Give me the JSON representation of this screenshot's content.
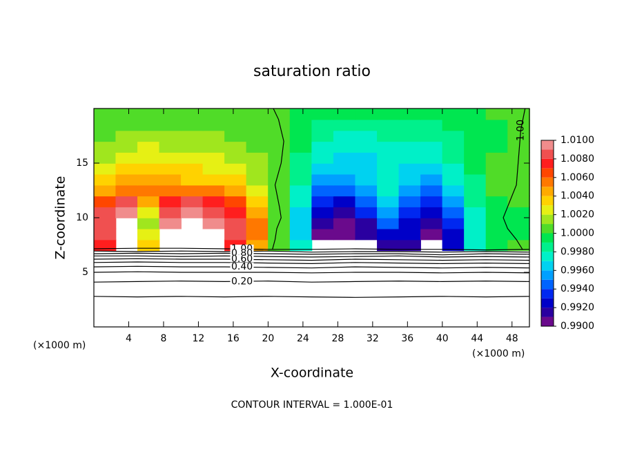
{
  "chart_data": {
    "type": "contour",
    "title": "saturation ratio",
    "x_label": "X-coordinate",
    "y_label": "Z-coordinate",
    "x_unit_label": "(×1000 m)",
    "footer": "CONTOUR INTERVAL = 1.000E-01",
    "xlim": [
      0,
      50
    ],
    "ylim": [
      0,
      20
    ],
    "xticks": [
      4,
      8,
      12,
      16,
      20,
      24,
      28,
      32,
      36,
      40,
      44,
      48
    ],
    "yticks": [
      5,
      10,
      15
    ],
    "field": {
      "xbins": [
        0,
        2.5,
        5,
        7.5,
        10,
        12.5,
        15,
        17.5,
        20,
        22.5,
        25,
        27.5,
        30,
        32.5,
        35,
        37.5,
        40,
        42.5,
        45,
        47.5,
        50
      ],
      "zbins": [
        7,
        8,
        9,
        10,
        11,
        12,
        13,
        14,
        15,
        16,
        17,
        18,
        19,
        20
      ],
      "values": [
        [
          1.007,
          null,
          1.003,
          null,
          null,
          null,
          1.007,
          1.004,
          1.0,
          0.997,
          null,
          null,
          null,
          0.991,
          0.991,
          null,
          0.992,
          0.997,
          0.999,
          1.0
        ],
        [
          1.008,
          null,
          1.002,
          null,
          null,
          null,
          1.008,
          1.005,
          1.0,
          0.996,
          0.99,
          0.99,
          0.991,
          0.992,
          0.992,
          0.99,
          0.992,
          0.997,
          0.999,
          0.999
        ],
        [
          1.008,
          null,
          1.001,
          1.009,
          null,
          1.009,
          1.008,
          1.005,
          1.0,
          0.996,
          0.991,
          0.99,
          0.991,
          0.994,
          0.992,
          0.991,
          0.993,
          0.997,
          0.999,
          0.999
        ],
        [
          1.008,
          1.009,
          1.002,
          1.008,
          1.009,
          1.008,
          1.007,
          1.004,
          1.0,
          0.996,
          0.992,
          0.991,
          0.993,
          0.995,
          0.993,
          0.992,
          0.994,
          0.997,
          0.999,
          0.999
        ],
        [
          1.006,
          1.008,
          1.004,
          1.007,
          1.008,
          1.007,
          1.006,
          1.003,
          1.0,
          0.997,
          0.993,
          0.992,
          0.994,
          0.996,
          0.994,
          0.993,
          0.995,
          0.998,
          0.999,
          1.0
        ],
        [
          1.004,
          1.005,
          1.005,
          1.005,
          1.005,
          1.005,
          1.004,
          1.002,
          1.0,
          0.997,
          0.994,
          0.994,
          0.995,
          0.997,
          0.995,
          0.994,
          0.996,
          0.998,
          1.0,
          1.0
        ],
        [
          1.003,
          1.004,
          1.004,
          1.004,
          1.003,
          1.003,
          1.003,
          1.001,
          1.0,
          0.998,
          0.995,
          0.995,
          0.996,
          0.997,
          0.996,
          0.995,
          0.997,
          0.998,
          1.0,
          1.0
        ],
        [
          1.002,
          1.003,
          1.003,
          1.003,
          1.003,
          1.002,
          1.002,
          1.001,
          1.0,
          0.998,
          0.996,
          0.996,
          0.996,
          0.997,
          0.996,
          0.996,
          0.997,
          0.999,
          1.0,
          1.0
        ],
        [
          1.001,
          1.002,
          1.002,
          1.002,
          1.002,
          1.002,
          1.001,
          1.001,
          1.0,
          0.998,
          0.997,
          0.996,
          0.996,
          0.997,
          0.997,
          0.997,
          0.998,
          0.999,
          1.0,
          1.0
        ],
        [
          1.001,
          1.001,
          1.002,
          1.001,
          1.001,
          1.001,
          1.001,
          1.0,
          1.0,
          0.999,
          0.997,
          0.997,
          0.997,
          0.997,
          0.997,
          0.997,
          0.998,
          0.999,
          0.999,
          1.0
        ],
        [
          1.0,
          1.001,
          1.001,
          1.001,
          1.001,
          1.001,
          1.0,
          1.0,
          1.0,
          0.999,
          0.998,
          0.997,
          0.997,
          0.998,
          0.998,
          0.998,
          0.998,
          0.999,
          0.999,
          1.0
        ],
        [
          1.0,
          1.0,
          1.0,
          1.0,
          1.0,
          1.0,
          1.0,
          1.0,
          1.0,
          0.999,
          0.998,
          0.998,
          0.998,
          0.998,
          0.998,
          0.998,
          0.999,
          0.999,
          0.999,
          1.0
        ],
        [
          1.0,
          1.0,
          1.0,
          1.0,
          1.0,
          1.0,
          1.0,
          1.0,
          1.0,
          0.999,
          0.999,
          0.999,
          0.999,
          0.999,
          0.999,
          0.999,
          0.999,
          0.999,
          1.0,
          1.0
        ]
      ]
    },
    "colorbar": {
      "clim": [
        0.99,
        1.01
      ],
      "colors": [
        "#6a0a8c",
        "#2a00a0",
        "#0000c8",
        "#0028f0",
        "#0064ff",
        "#00a0ff",
        "#00d2f0",
        "#00f0c8",
        "#00f08c",
        "#00e650",
        "#50dc28",
        "#a0e61e",
        "#e6f014",
        "#ffd200",
        "#ffaa00",
        "#ff7800",
        "#ff4600",
        "#ff1e1e",
        "#f05050",
        "#f08c8c"
      ],
      "ticks": [
        {
          "value": 0.99,
          "label": "0.9900"
        },
        {
          "value": 0.992,
          "label": "0.9920"
        },
        {
          "value": 0.994,
          "label": "0.9940"
        },
        {
          "value": 0.996,
          "label": "0.9960"
        },
        {
          "value": 0.998,
          "label": "0.9980"
        },
        {
          "value": 1.0,
          "label": "1.0000"
        },
        {
          "value": 1.002,
          "label": "1.0020"
        },
        {
          "value": 1.004,
          "label": "1.0040"
        },
        {
          "value": 1.006,
          "label": "1.0060"
        },
        {
          "value": 1.008,
          "label": "1.0080"
        },
        {
          "value": 1.01,
          "label": "1.0100"
        }
      ]
    },
    "contours": [
      {
        "level": 1.0,
        "label": "1.00",
        "x": [
          0,
          5,
          10,
          15,
          20,
          25,
          30,
          35,
          40,
          45,
          50
        ],
        "z": [
          7.15,
          7.2,
          7.2,
          7.15,
          7.1,
          7.1,
          7.15,
          7.1,
          7.1,
          7.05,
          7.1
        ]
      },
      {
        "level": 0.9,
        "x": [
          0,
          5,
          10,
          15,
          20,
          25,
          30,
          35,
          40,
          45,
          50
        ],
        "z": [
          6.95,
          6.9,
          6.95,
          6.9,
          6.95,
          6.85,
          6.9,
          6.9,
          6.85,
          6.9,
          6.85
        ]
      },
      {
        "level": 0.8,
        "label": "0.80",
        "x": [
          0,
          5,
          10,
          15,
          20,
          25,
          30,
          35,
          40,
          45,
          50
        ],
        "z": [
          6.7,
          6.75,
          6.7,
          6.75,
          6.7,
          6.65,
          6.7,
          6.7,
          6.6,
          6.7,
          6.65
        ]
      },
      {
        "level": 0.7,
        "x": [
          0,
          5,
          10,
          15,
          20,
          25,
          30,
          35,
          40,
          45,
          50
        ],
        "z": [
          6.5,
          6.5,
          6.45,
          6.5,
          6.45,
          6.4,
          6.45,
          6.5,
          6.4,
          6.45,
          6.4
        ]
      },
      {
        "level": 0.6,
        "label": "0.60",
        "x": [
          0,
          5,
          10,
          15,
          20,
          25,
          30,
          35,
          40,
          45,
          50
        ],
        "z": [
          6.2,
          6.25,
          6.2,
          6.2,
          6.15,
          6.1,
          6.2,
          6.15,
          6.1,
          6.15,
          6.1
        ]
      },
      {
        "level": 0.5,
        "x": [
          0,
          5,
          10,
          15,
          20,
          25,
          30,
          35,
          40,
          45,
          50
        ],
        "z": [
          5.9,
          5.95,
          5.9,
          5.9,
          5.85,
          5.8,
          5.9,
          5.85,
          5.8,
          5.85,
          5.8
        ]
      },
      {
        "level": 0.4,
        "label": "0.40",
        "x": [
          0,
          5,
          10,
          15,
          20,
          25,
          30,
          35,
          40,
          45,
          50
        ],
        "z": [
          5.5,
          5.55,
          5.5,
          5.5,
          5.45,
          5.4,
          5.5,
          5.45,
          5.4,
          5.45,
          5.4
        ]
      },
      {
        "level": 0.3,
        "x": [
          0,
          5,
          10,
          15,
          20,
          25,
          30,
          35,
          40,
          45,
          50
        ],
        "z": [
          5.0,
          5.05,
          5.0,
          5.0,
          5.0,
          4.95,
          5.0,
          5.0,
          4.95,
          5.0,
          4.95
        ]
      },
      {
        "level": 0.2,
        "label": "0.20",
        "x": [
          0,
          5,
          10,
          15,
          20,
          25,
          30,
          35,
          40,
          45,
          50
        ],
        "z": [
          4.1,
          4.15,
          4.2,
          4.15,
          4.2,
          4.1,
          4.15,
          4.2,
          4.15,
          4.2,
          4.15
        ]
      },
      {
        "level": 0.1,
        "x": [
          0,
          5,
          10,
          15,
          20,
          25,
          30,
          35,
          40,
          45,
          50
        ],
        "z": [
          2.8,
          2.75,
          2.8,
          2.75,
          2.8,
          2.75,
          2.7,
          2.75,
          2.8,
          2.75,
          2.8
        ]
      },
      {
        "level": 1.0,
        "x": [
          20.5,
          20.8,
          21.0,
          21.5,
          21.3,
          20.8,
          21.5,
          21.8,
          21.2,
          20.6
        ],
        "z": [
          7.1,
          8,
          9,
          10,
          11,
          13,
          15,
          17,
          19,
          20
        ]
      },
      {
        "level": 1.0,
        "label": "1.00",
        "x": [
          49.2,
          48.5,
          47.5,
          47.0,
          47.5,
          48.5,
          48.8,
          49.0,
          49.5
        ],
        "z": [
          7.1,
          8,
          9,
          10,
          11,
          13,
          16,
          18,
          20
        ]
      }
    ]
  }
}
